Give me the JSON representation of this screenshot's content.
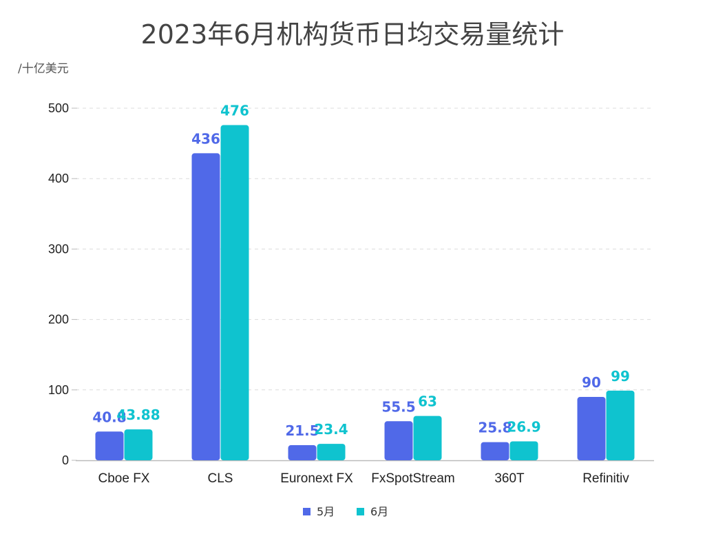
{
  "chart_data": {
    "type": "bar",
    "title": "2023年6月机构货币日均交易量统计",
    "unit_label": "/十亿美元",
    "categories": [
      "Cboe FX",
      "CLS",
      "Euronext FX",
      "FxSpotStream",
      "360T",
      "Refinitiv"
    ],
    "series": [
      {
        "name": "5月",
        "color": "#5069e8",
        "values": [
          40.8,
          436,
          21.5,
          55.5,
          25.8,
          90
        ],
        "labels": [
          "40.8",
          "436",
          "21.5",
          "55.5",
          "25.8",
          "90"
        ]
      },
      {
        "name": "6月",
        "color": "#0fc3cf",
        "values": [
          43.88,
          476,
          23.4,
          63,
          26.9,
          99
        ],
        "labels": [
          "43.88",
          "476",
          "23.4",
          "63",
          "26.9",
          "99"
        ]
      }
    ],
    "ylim": [
      0,
      500
    ],
    "yticks": [
      0,
      100,
      200,
      300,
      400,
      500
    ],
    "grid": true,
    "legend_position": "bottom"
  }
}
